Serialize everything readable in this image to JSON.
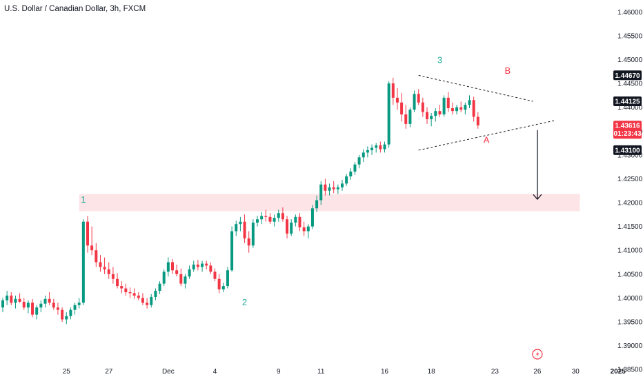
{
  "header": {
    "title": "U.S. Dollar / Canadian Dollar, 3h, FXCM"
  },
  "colors": {
    "up": "#089981",
    "down": "#f23645",
    "zone": "#fde4e6",
    "wave_green": "#22ab94",
    "wave_red": "#f23645",
    "axis_text": "#131722",
    "badge_dark": "#131722",
    "badge_red": "#f23645",
    "trendline": "#131722",
    "arrow": "#131722"
  },
  "icons": {
    "replay": "lightning-bolt-icon"
  },
  "chart_data": {
    "type": "candlestick",
    "title": "U.S. Dollar / Canadian Dollar, 3h, FXCM",
    "xlabel": "",
    "ylabel": "",
    "ylim": [
      1.383,
      1.4625
    ],
    "grid": false,
    "y_ticks": [
      "1.46000",
      "1.45500",
      "1.45000",
      "1.44500",
      "1.44000",
      "1.43500",
      "1.43000",
      "1.42500",
      "1.42000",
      "1.41500",
      "1.41000",
      "1.40500",
      "1.40000",
      "1.39500",
      "1.39000",
      "1.38500"
    ],
    "x_ticks": [
      {
        "label": "25",
        "index": 15
      },
      {
        "label": "27",
        "index": 25
      },
      {
        "label": "Dec",
        "index": 39
      },
      {
        "label": "4",
        "index": 50
      },
      {
        "label": "9",
        "index": 65
      },
      {
        "label": "11",
        "index": 75
      },
      {
        "label": "16",
        "index": 90
      },
      {
        "label": "18",
        "index": 101
      },
      {
        "label": "23",
        "index": 116
      },
      {
        "label": "26",
        "index": 126
      },
      {
        "label": "30",
        "index": 135
      },
      {
        "label": "2025",
        "index": 145
      }
    ],
    "ohlc": [
      [
        1.398,
        1.4,
        1.397,
        1.3995
      ],
      [
        1.3995,
        1.4015,
        1.3985,
        1.4005
      ],
      [
        1.4005,
        1.4012,
        1.3985,
        1.399
      ],
      [
        1.399,
        1.4005,
        1.3978,
        1.3998
      ],
      [
        1.3998,
        1.401,
        1.399,
        1.3992
      ],
      [
        1.3992,
        1.4,
        1.3975,
        1.398
      ],
      [
        1.398,
        1.3995,
        1.3968,
        1.399
      ],
      [
        1.399,
        1.3998,
        1.396,
        1.3965
      ],
      [
        1.3965,
        1.3985,
        1.3955,
        1.398
      ],
      [
        1.398,
        1.3995,
        1.397,
        1.3988
      ],
      [
        1.3988,
        1.4005,
        1.398,
        1.3998
      ],
      [
        1.3998,
        1.4012,
        1.3985,
        1.399
      ],
      [
        1.399,
        1.3998,
        1.3975,
        1.398
      ],
      [
        1.398,
        1.399,
        1.3965,
        1.3975
      ],
      [
        1.3975,
        1.398,
        1.395,
        1.3955
      ],
      [
        1.3955,
        1.397,
        1.3945,
        1.3962
      ],
      [
        1.3962,
        1.398,
        1.3955,
        1.3975
      ],
      [
        1.3975,
        1.399,
        1.3965,
        1.3985
      ],
      [
        1.3985,
        1.4,
        1.3978,
        1.399
      ],
      [
        1.399,
        1.4165,
        1.3985,
        1.416
      ],
      [
        1.416,
        1.4172,
        1.4095,
        1.411
      ],
      [
        1.411,
        1.415,
        1.409,
        1.41
      ],
      [
        1.41,
        1.4115,
        1.4065,
        1.4075
      ],
      [
        1.4075,
        1.409,
        1.4055,
        1.4065
      ],
      [
        1.4065,
        1.4085,
        1.405,
        1.406
      ],
      [
        1.406,
        1.4075,
        1.404,
        1.405
      ],
      [
        1.405,
        1.4065,
        1.403,
        1.404
      ],
      [
        1.404,
        1.4052,
        1.402,
        1.4025
      ],
      [
        1.4025,
        1.4035,
        1.401,
        1.402
      ],
      [
        1.402,
        1.403,
        1.4005,
        1.4012
      ],
      [
        1.4012,
        1.4022,
        1.4,
        1.401
      ],
      [
        1.401,
        1.402,
        1.3998,
        1.4005
      ],
      [
        1.4005,
        1.4012,
        1.3995,
        1.4
      ],
      [
        1.4,
        1.401,
        1.3985,
        1.399
      ],
      [
        1.399,
        1.4,
        1.3978,
        1.3985
      ],
      [
        1.3985,
        1.4008,
        1.398,
        1.4002
      ],
      [
        1.4002,
        1.402,
        1.3995,
        1.4015
      ],
      [
        1.4015,
        1.4035,
        1.4008,
        1.403
      ],
      [
        1.403,
        1.406,
        1.4025,
        1.4055
      ],
      [
        1.4055,
        1.4085,
        1.4045,
        1.4075
      ],
      [
        1.4075,
        1.4082,
        1.405,
        1.4058
      ],
      [
        1.4058,
        1.407,
        1.4045,
        1.405
      ],
      [
        1.405,
        1.4062,
        1.4025,
        1.403
      ],
      [
        1.403,
        1.405,
        1.402,
        1.4045
      ],
      [
        1.4045,
        1.4068,
        1.404,
        1.406
      ],
      [
        1.406,
        1.4078,
        1.4055,
        1.407
      ],
      [
        1.407,
        1.408,
        1.4058,
        1.4065
      ],
      [
        1.4065,
        1.4078,
        1.4055,
        1.4072
      ],
      [
        1.4072,
        1.4078,
        1.406,
        1.4068
      ],
      [
        1.4068,
        1.4075,
        1.405,
        1.4055
      ],
      [
        1.4055,
        1.4062,
        1.4035,
        1.404
      ],
      [
        1.404,
        1.405,
        1.401,
        1.4018
      ],
      [
        1.4018,
        1.4032,
        1.4012,
        1.4025
      ],
      [
        1.4025,
        1.4065,
        1.402,
        1.4058
      ],
      [
        1.4058,
        1.415,
        1.4055,
        1.414
      ],
      [
        1.414,
        1.4162,
        1.413,
        1.4155
      ],
      [
        1.4155,
        1.417,
        1.414,
        1.416
      ],
      [
        1.416,
        1.4175,
        1.4115,
        1.4125
      ],
      [
        1.4125,
        1.414,
        1.4095,
        1.411
      ],
      [
        1.411,
        1.4165,
        1.4105,
        1.4158
      ],
      [
        1.4158,
        1.4172,
        1.415,
        1.4165
      ],
      [
        1.4165,
        1.418,
        1.4155,
        1.4172
      ],
      [
        1.4172,
        1.4185,
        1.416,
        1.417
      ],
      [
        1.417,
        1.4178,
        1.4155,
        1.416
      ],
      [
        1.416,
        1.4175,
        1.415,
        1.4168
      ],
      [
        1.4168,
        1.4185,
        1.416,
        1.4178
      ],
      [
        1.4178,
        1.419,
        1.416,
        1.4165
      ],
      [
        1.4165,
        1.4172,
        1.4125,
        1.4135
      ],
      [
        1.4135,
        1.4165,
        1.413,
        1.4158
      ],
      [
        1.4158,
        1.4175,
        1.415,
        1.417
      ],
      [
        1.417,
        1.4178,
        1.414,
        1.4148
      ],
      [
        1.4148,
        1.416,
        1.413,
        1.414
      ],
      [
        1.414,
        1.4155,
        1.4125,
        1.415
      ],
      [
        1.415,
        1.4195,
        1.4145,
        1.4188
      ],
      [
        1.4188,
        1.4215,
        1.418,
        1.4205
      ],
      [
        1.4205,
        1.4245,
        1.4195,
        1.4238
      ],
      [
        1.4238,
        1.425,
        1.4215,
        1.4225
      ],
      [
        1.4225,
        1.424,
        1.4215,
        1.4232
      ],
      [
        1.4232,
        1.4245,
        1.422,
        1.4228
      ],
      [
        1.4228,
        1.4238,
        1.4218,
        1.4232
      ],
      [
        1.4232,
        1.4248,
        1.4225,
        1.424
      ],
      [
        1.424,
        1.426,
        1.4235,
        1.4255
      ],
      [
        1.4255,
        1.4272,
        1.4248,
        1.4265
      ],
      [
        1.4265,
        1.4285,
        1.4258,
        1.428
      ],
      [
        1.428,
        1.43,
        1.4272,
        1.4295
      ],
      [
        1.4295,
        1.4312,
        1.4285,
        1.4305
      ],
      [
        1.4305,
        1.4318,
        1.4295,
        1.431
      ],
      [
        1.431,
        1.4322,
        1.43,
        1.4315
      ],
      [
        1.4315,
        1.4325,
        1.4305,
        1.432
      ],
      [
        1.432,
        1.4328,
        1.4305,
        1.4312
      ],
      [
        1.4312,
        1.4328,
        1.4305,
        1.4322
      ],
      [
        1.4322,
        1.4455,
        1.4315,
        1.445
      ],
      [
        1.445,
        1.4462,
        1.4405,
        1.442
      ],
      [
        1.442,
        1.444,
        1.4395,
        1.441
      ],
      [
        1.441,
        1.443,
        1.437,
        1.4385
      ],
      [
        1.4385,
        1.4405,
        1.4355,
        1.4365
      ],
      [
        1.4365,
        1.44,
        1.4358,
        1.4395
      ],
      [
        1.4395,
        1.4435,
        1.439,
        1.4428
      ],
      [
        1.4428,
        1.4438,
        1.4405,
        1.441
      ],
      [
        1.441,
        1.442,
        1.438,
        1.439
      ],
      [
        1.439,
        1.44,
        1.4365,
        1.4375
      ],
      [
        1.4375,
        1.4388,
        1.436,
        1.4382
      ],
      [
        1.4382,
        1.4398,
        1.437,
        1.4392
      ],
      [
        1.4392,
        1.4405,
        1.438,
        1.4385
      ],
      [
        1.4385,
        1.4425,
        1.438,
        1.442
      ],
      [
        1.442,
        1.4432,
        1.439,
        1.4398
      ],
      [
        1.4398,
        1.441,
        1.4385,
        1.4392
      ],
      [
        1.4392,
        1.4405,
        1.4385,
        1.44
      ],
      [
        1.44,
        1.4412,
        1.439,
        1.4395
      ],
      [
        1.4395,
        1.441,
        1.4385,
        1.4405
      ],
      [
        1.4405,
        1.4425,
        1.4398,
        1.4415
      ],
      [
        1.4415,
        1.4422,
        1.437,
        1.438
      ],
      [
        1.438,
        1.439,
        1.4355,
        1.4362
      ]
    ],
    "price_badges": [
      {
        "label": "1.44670",
        "value": 1.4467,
        "style": "dark"
      },
      {
        "label": "1.44125",
        "value": 1.44125,
        "style": "dark"
      },
      {
        "label": "1.43616",
        "sub": "01:23:43",
        "value": 1.43616,
        "style": "red"
      },
      {
        "label": "1.43100",
        "value": 1.431,
        "style": "dark"
      }
    ],
    "zone": {
      "index_from": 18,
      "index_to": 136,
      "price_top": 1.4218,
      "price_bottom": 1.4182
    },
    "trendlines": [
      {
        "name": "triangle-upper-line",
        "from": [
          98,
          1.4467
        ],
        "to": [
          125,
          1.44125
        ]
      },
      {
        "name": "triangle-lower-line",
        "from": [
          98,
          1.431
        ],
        "to": [
          130,
          1.4372
        ]
      }
    ],
    "arrow": {
      "index": 126,
      "price_from": 1.4352,
      "price_to": 1.4207
    },
    "annotations": [
      {
        "text": "1",
        "index": 19,
        "price": 1.42,
        "color": "green"
      },
      {
        "text": "2",
        "index": 57,
        "price": 1.3985,
        "color": "green"
      },
      {
        "text": "3",
        "index": 103,
        "price": 1.4493,
        "color": "green"
      },
      {
        "text": "A",
        "index": 114,
        "price": 1.4325,
        "color": "red"
      },
      {
        "text": "B",
        "index": 119,
        "price": 1.447,
        "color": "red"
      }
    ]
  }
}
